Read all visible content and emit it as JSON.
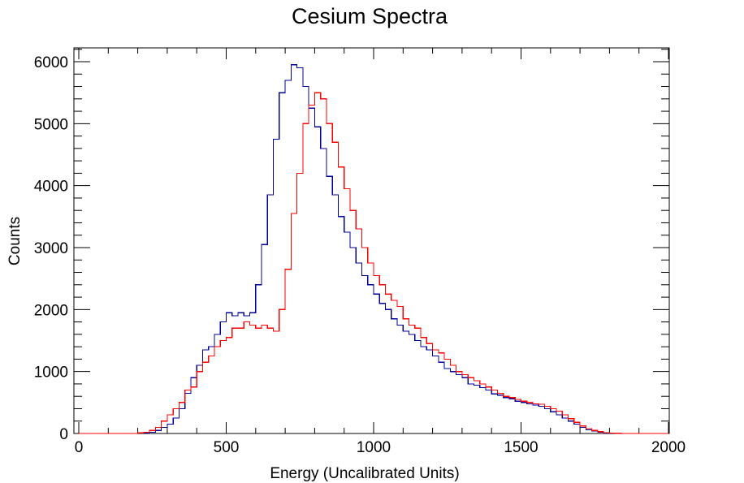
{
  "chart_data": {
    "type": "line",
    "title": "Cesium Spectra",
    "xlabel": "Energy (Uncalibrated Units)",
    "ylabel": "Counts",
    "xlim": [
      0,
      2000
    ],
    "ylim": [
      0,
      6250
    ],
    "grid": false,
    "x_ticks": [
      0,
      500,
      1000,
      1500,
      2000
    ],
    "y_ticks": [
      0,
      1000,
      2000,
      3000,
      4000,
      5000,
      6000
    ],
    "bin_width": 20,
    "series": [
      {
        "color": "#000099",
        "values": [
          0,
          0,
          0,
          0,
          0,
          0,
          0,
          0,
          0,
          0,
          5,
          10,
          20,
          50,
          100,
          150,
          250,
          400,
          650,
          900,
          1100,
          1350,
          1400,
          1600,
          1800,
          1950,
          1900,
          1950,
          1900,
          1950,
          2400,
          3050,
          3850,
          4750,
          5500,
          5700,
          5950,
          5900,
          5600,
          5250,
          4950,
          4600,
          4150,
          3850,
          3500,
          3250,
          3000,
          2750,
          2550,
          2400,
          2250,
          2100,
          2000,
          1850,
          1750,
          1650,
          1600,
          1500,
          1400,
          1350,
          1250,
          1150,
          1050,
          1000,
          950,
          900,
          800,
          780,
          740,
          700,
          640,
          620,
          580,
          560,
          520,
          500,
          480,
          460,
          440,
          400,
          350,
          300,
          250,
          200,
          150,
          100,
          60,
          40,
          20,
          10,
          5,
          2,
          0,
          0,
          0,
          0,
          0,
          0,
          0,
          0
        ]
      },
      {
        "color": "#ff0000",
        "values": [
          0,
          0,
          0,
          0,
          0,
          0,
          0,
          0,
          0,
          0,
          10,
          20,
          50,
          100,
          200,
          300,
          400,
          500,
          700,
          750,
          1000,
          1150,
          1250,
          1400,
          1500,
          1550,
          1700,
          1700,
          1800,
          1750,
          1700,
          1750,
          1700,
          1650,
          2000,
          2650,
          3550,
          4200,
          5000,
          5300,
          5500,
          5400,
          5000,
          4700,
          4300,
          3950,
          3600,
          3300,
          3000,
          2750,
          2550,
          2400,
          2250,
          2150,
          2050,
          1850,
          1750,
          1700,
          1550,
          1450,
          1350,
          1300,
          1200,
          1100,
          1000,
          950,
          900,
          850,
          800,
          750,
          700,
          650,
          600,
          580,
          550,
          520,
          500,
          480,
          470,
          440,
          400,
          360,
          300,
          240,
          180,
          120,
          80,
          50,
          30,
          15,
          8,
          4,
          2,
          0,
          0,
          0,
          0,
          0,
          0,
          0
        ]
      }
    ]
  }
}
